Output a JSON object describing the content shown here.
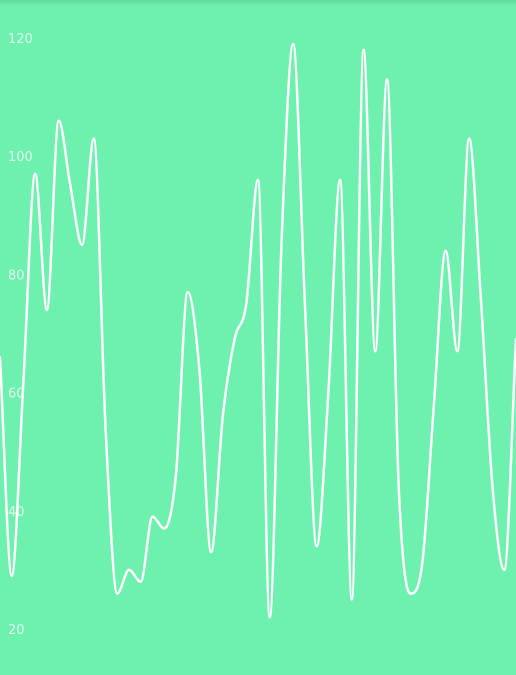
{
  "colors": {
    "background": "#6ef0ae",
    "line": "#ffffff"
  },
  "chart_data": {
    "type": "line",
    "title": "",
    "xlabel": "",
    "ylabel": "",
    "ylim": [
      20,
      120
    ],
    "y_ticks": [
      "120",
      "100",
      "80",
      "60",
      "40",
      "20"
    ],
    "grid": false,
    "legend": "none",
    "series": [
      {
        "values": [
          66,
          29,
          62,
          97,
          74,
          106,
          95,
          85,
          103,
          54,
          26,
          30,
          28,
          39,
          37,
          46,
          77,
          64,
          33,
          56,
          69,
          75,
          96,
          22,
          85,
          119,
          75,
          34,
          60,
          96,
          25,
          118,
          67,
          113,
          44,
          26,
          31,
          58,
          84,
          67,
          103,
          76,
          44,
          30,
          69
        ]
      }
    ]
  }
}
